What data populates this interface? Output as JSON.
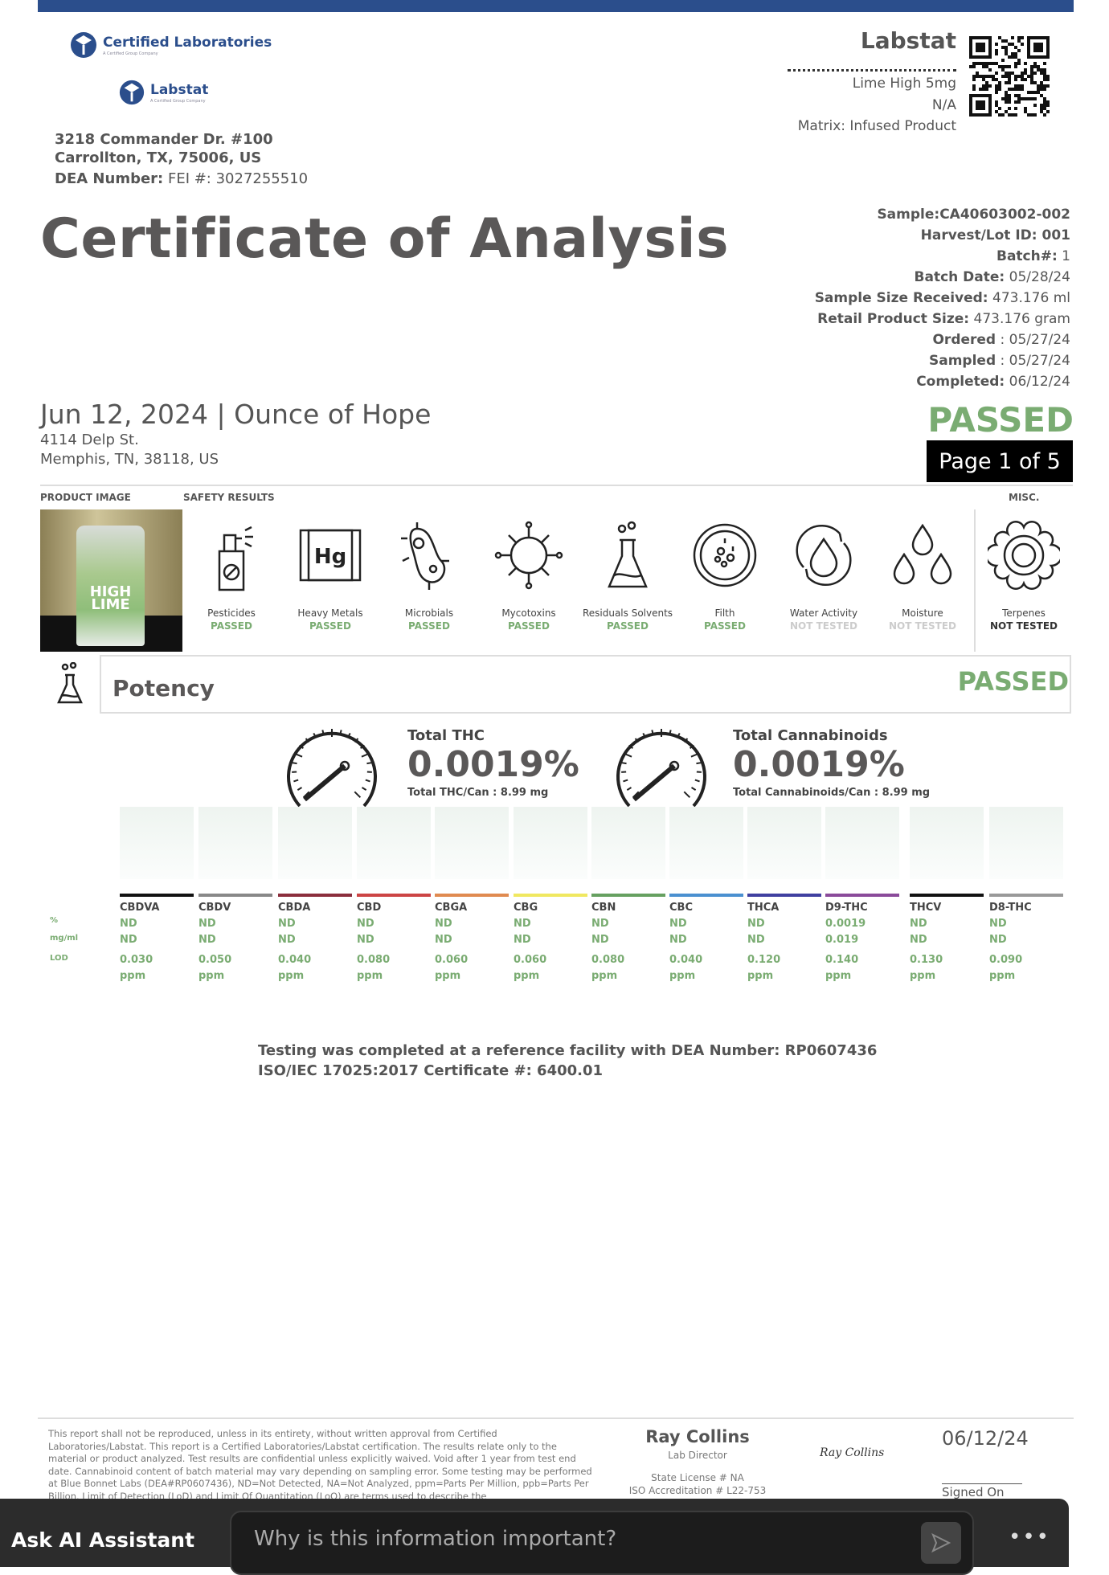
{
  "header": {
    "logo1": "Certified Laboratories",
    "logo1_sub": "A Certified Group Company",
    "logo2": "Labstat",
    "logo2_sub": "A Certified Group Company",
    "address1": "3218 Commander Dr. #100",
    "address2": "Carrollton, TX, 75006, US",
    "dea_label": "DEA Number:",
    "dea_value": " FEI #: 3027255510",
    "lab_name": "Labstat",
    "product": "Lime High 5mg",
    "na": "N/A",
    "matrix": "Matrix: Infused Product"
  },
  "title": "Certificate of Analysis",
  "details": [
    {
      "label": "Sample:CA40603002-002",
      "value": ""
    },
    {
      "label": "Harvest/Lot ID: 001",
      "value": ""
    },
    {
      "label": "Batch#:",
      "value": " 1"
    },
    {
      "label": "Batch Date:",
      "value": " 05/28/24"
    },
    {
      "label": "Sample Size Received:",
      "value": " 473.176 ml"
    },
    {
      "label": "Retail Product Size:",
      "value": " 473.176 gram"
    },
    {
      "label": "Ordered",
      "value": " : 05/27/24"
    },
    {
      "label": "Sampled",
      "value": " : 05/27/24"
    },
    {
      "label": "Completed:",
      "value": " 06/12/24"
    }
  ],
  "client": {
    "date_line": "Jun 12, 2024 | Ounce of Hope",
    "street": "4114 Delp St.",
    "city": "Memphis, TN, 38118, US"
  },
  "status": "PASSED",
  "page": "Page 1 of 5",
  "sections": {
    "product_image": "PRODUCT IMAGE",
    "safety": "SAFETY RESULTS",
    "misc": "MISC."
  },
  "product_image_text": "HIGH LIME",
  "safety": [
    {
      "icon": "spray-bottle-icon",
      "label": "Pesticides",
      "status": "PASSED"
    },
    {
      "icon": "hg-element-icon",
      "label": "Heavy Metals",
      "status": "PASSED"
    },
    {
      "icon": "microbe-icon",
      "label": "Microbials",
      "status": "PASSED"
    },
    {
      "icon": "virus-icon",
      "label": "Mycotoxins",
      "status": "PASSED"
    },
    {
      "icon": "flask-icon",
      "label": "Residuals Solvents",
      "status": "PASSED"
    },
    {
      "icon": "petri-dish-icon",
      "label": "Filth",
      "status": "PASSED"
    },
    {
      "icon": "water-cycle-icon",
      "label": "Water Activity",
      "status": "NOT TESTED"
    },
    {
      "icon": "droplets-icon",
      "label": "Moisture",
      "status": "NOT TESTED"
    },
    {
      "icon": "flower-icon",
      "label": "Terpenes",
      "status": "NOT TESTED"
    }
  ],
  "potency": {
    "title": "Potency",
    "status": "PASSED",
    "total_thc_label": "Total THC",
    "total_thc": "0.0019%",
    "total_thc_can": "Total THC/Can : 8.99 mg",
    "total_cann_label": "Total Cannabinoids",
    "total_cann": "0.0019%",
    "total_cann_can": "Total Cannabinoids/Can : 8.99 mg",
    "row_labels": {
      "pct": "%",
      "mg": "mg/ml",
      "lod": "LOD"
    },
    "analytes": [
      {
        "name": "CBDVA",
        "color": "#111111",
        "pct": "ND",
        "mg": "ND",
        "lod": "0.030",
        "unit": "ppm"
      },
      {
        "name": "CBDV",
        "color": "#888888",
        "pct": "ND",
        "mg": "ND",
        "lod": "0.050",
        "unit": "ppm"
      },
      {
        "name": "CBDA",
        "color": "#8b2e3c",
        "pct": "ND",
        "mg": "ND",
        "lod": "0.040",
        "unit": "ppm"
      },
      {
        "name": "CBD",
        "color": "#cc4444",
        "pct": "ND",
        "mg": "ND",
        "lod": "0.080",
        "unit": "ppm"
      },
      {
        "name": "CBGA",
        "color": "#e08a50",
        "pct": "ND",
        "mg": "ND",
        "lod": "0.060",
        "unit": "ppm"
      },
      {
        "name": "CBG",
        "color": "#f0e860",
        "pct": "ND",
        "mg": "ND",
        "lod": "0.060",
        "unit": "ppm"
      },
      {
        "name": "CBN",
        "color": "#66a060",
        "pct": "ND",
        "mg": "ND",
        "lod": "0.080",
        "unit": "ppm"
      },
      {
        "name": "CBC",
        "color": "#4a90d0",
        "pct": "ND",
        "mg": "ND",
        "lod": "0.040",
        "unit": "ppm"
      },
      {
        "name": "THCA",
        "color": "#4040a0",
        "pct": "ND",
        "mg": "ND",
        "lod": "0.120",
        "unit": "ppm"
      },
      {
        "name": "D9-THC",
        "color": "#8a4a9a",
        "pct": "0.0019",
        "mg": "0.019",
        "lod": "0.140",
        "unit": "ppm"
      },
      {
        "name": "THCV",
        "color": "#111111",
        "pct": "ND",
        "mg": "ND",
        "lod": "0.130",
        "unit": "ppm"
      },
      {
        "name": "D8-THC",
        "color": "#999999",
        "pct": "ND",
        "mg": "ND",
        "lod": "0.090",
        "unit": "ppm"
      }
    ]
  },
  "testing": {
    "line1": "Testing was completed at a reference facility with DEA Number: RP0607436",
    "line2": "ISO/IEC 17025:2017 Certificate #: 6400.01"
  },
  "footer": {
    "disclaimer": "This report shall not be reproduced, unless in its entirety, without written approval from Certified Laboratories/Labstat. This report is a Certified Laboratories/Labstat certification. The results relate only to the material or product analyzed. Test results are confidential unless explicitly waived. Void after 1 year from test end date. Cannabinoid content of batch material may vary depending on sampling error. Some testing may be performed at Blue Bonnet Labs (DEA#RP0607436), ND=Not Detected, NA=Not Analyzed, ppm=Parts Per Million, ppb=Parts Per Billion. Limit of Detection (LoD) and Limit Of Quantitation (LoQ) are terms used to describe the",
    "signer": "Ray Collins",
    "role": "Lab Director",
    "license": "State License # NA",
    "iso": "ISO Accreditation # L22-753",
    "signature": "Ray Collins",
    "signed_date": "06/12/24",
    "signed_on": "Signed On"
  },
  "ai": {
    "label": "Ask AI Assistant",
    "placeholder": "Why is this information important?",
    "more": "•••"
  },
  "colors": {
    "brand": "#2b4e8c",
    "passed": "#7aac72",
    "text": "#555555"
  }
}
